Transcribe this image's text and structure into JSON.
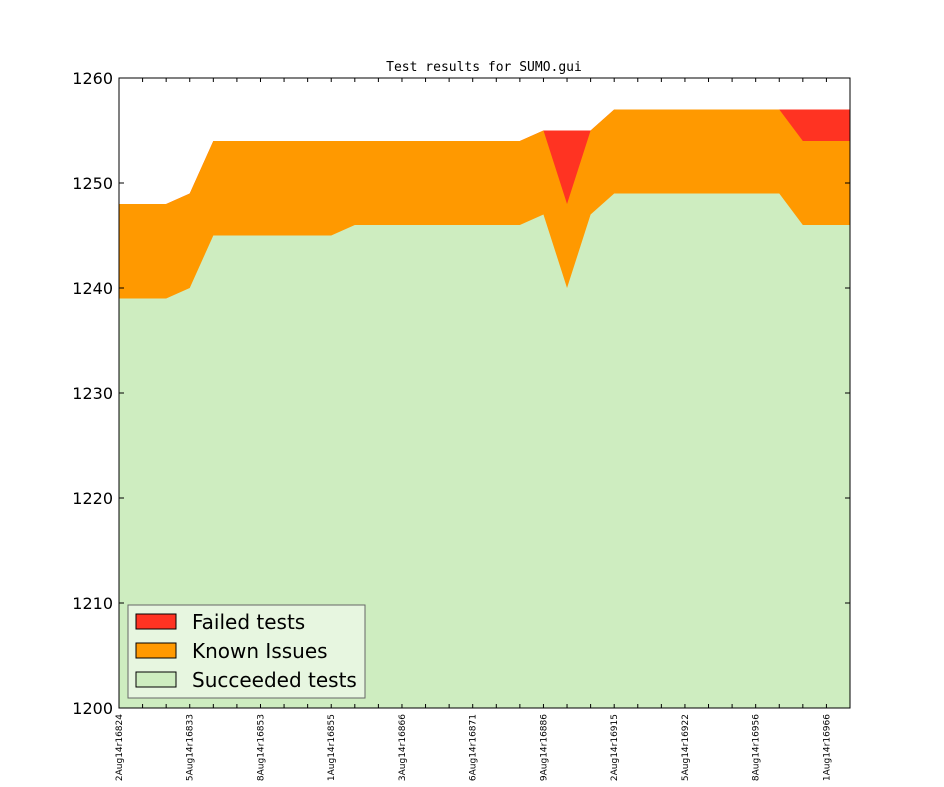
{
  "chart_data": {
    "type": "area",
    "title": "Test results for SUMO.gui",
    "xlabel": "",
    "ylabel": "",
    "ylim": [
      1200,
      1260
    ],
    "yticks": [
      1200,
      1210,
      1220,
      1230,
      1240,
      1250,
      1260
    ],
    "stacked": true,
    "grid": false,
    "legend_position": "lower-left",
    "x_tick_labels": [
      "2Aug14r16824",
      "5Aug14r16833",
      "8Aug14r16853",
      "1Aug14r16855",
      "3Aug14r16866",
      "6Aug14r16871",
      "9Aug14r16886",
      "2Aug14r16915",
      "5Aug14r16922",
      "8Aug14r16956",
      "1Aug14r16966"
    ],
    "x_points_per_tick": 3,
    "series": [
      {
        "name": "Succeeded tests",
        "color": "#ceedc0",
        "cumulative_values": [
          1239,
          1239,
          1239,
          1240,
          1245,
          1245,
          1245,
          1245,
          1245,
          1245,
          1246,
          1246,
          1246,
          1246,
          1246,
          1246,
          1246,
          1246,
          1247,
          1240,
          1247,
          1249,
          1249,
          1249,
          1249,
          1249,
          1249,
          1249,
          1249,
          1246,
          1246,
          1246
        ]
      },
      {
        "name": "Known Issues",
        "color": "#ff9900",
        "cumulative_values": [
          1248,
          1248,
          1248,
          1249,
          1254,
          1254,
          1254,
          1254,
          1254,
          1254,
          1254,
          1254,
          1254,
          1254,
          1254,
          1254,
          1254,
          1254,
          1255,
          1248,
          1255,
          1257,
          1257,
          1257,
          1257,
          1257,
          1257,
          1257,
          1257,
          1254,
          1254,
          1254
        ]
      },
      {
        "name": "Failed tests",
        "color": "#ff3322",
        "cumulative_values": [
          1248,
          1248,
          1248,
          1249,
          1254,
          1254,
          1254,
          1254,
          1254,
          1254,
          1254,
          1254,
          1254,
          1254,
          1254,
          1254,
          1254,
          1254,
          1255,
          1255,
          1255,
          1257,
          1257,
          1257,
          1257,
          1257,
          1257,
          1257,
          1257,
          1257,
          1257,
          1257
        ]
      }
    ],
    "legend": [
      {
        "label": "Failed tests",
        "color": "#ff3322"
      },
      {
        "label": "Known Issues",
        "color": "#ff9900"
      },
      {
        "label": "Succeeded tests",
        "color": "#ceedc0"
      }
    ]
  }
}
